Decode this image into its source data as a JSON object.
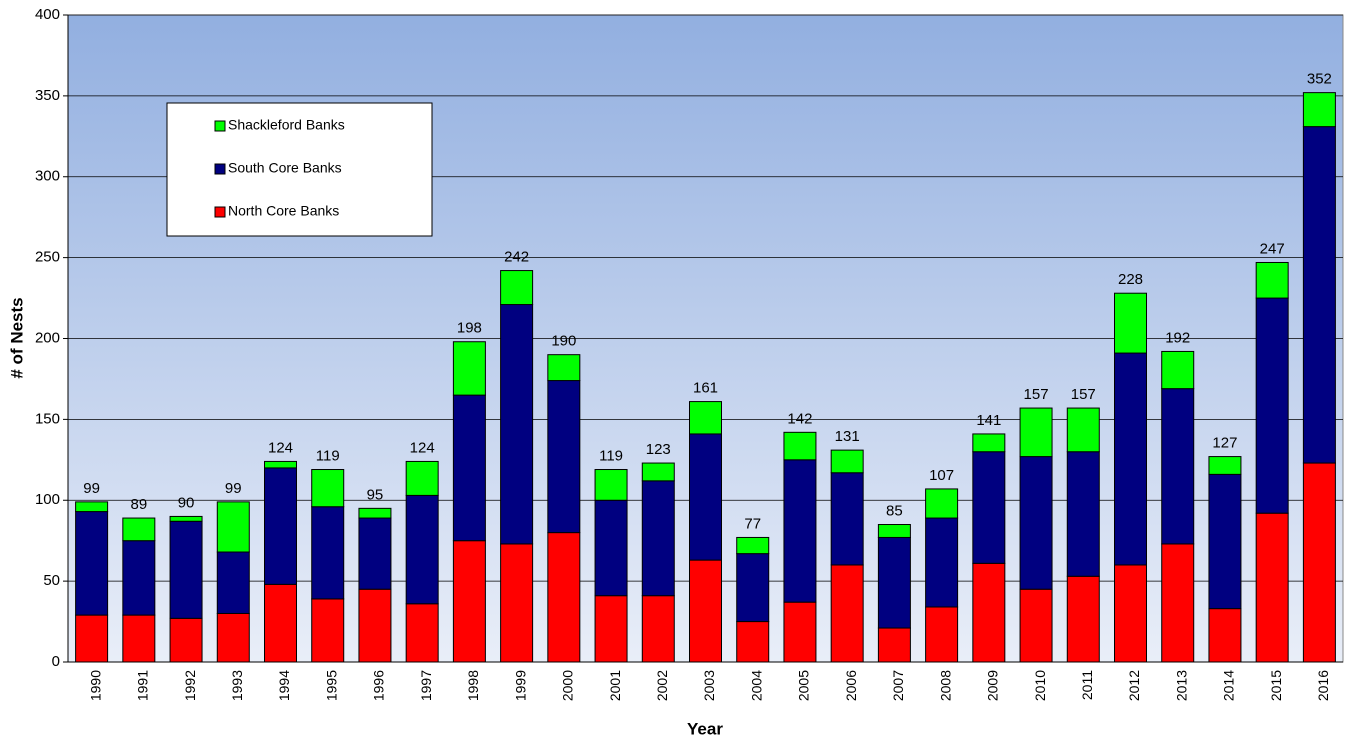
{
  "chart_data": {
    "type": "stacked_bar",
    "x_label": "Year",
    "y_label": "# of Nests",
    "categories": [
      "1990",
      "1991",
      "1992",
      "1993",
      "1994",
      "1995",
      "1996",
      "1997",
      "1998",
      "1999",
      "2000",
      "2001",
      "2002",
      "2003",
      "2004",
      "2005",
      "2006",
      "2007",
      "2008",
      "2009",
      "2010",
      "2011",
      "2012",
      "2013",
      "2014",
      "2015",
      "2016"
    ],
    "series": [
      {
        "name": "North Core Banks",
        "color": "#ff0000",
        "values": [
          29,
          29,
          27,
          30,
          48,
          39,
          45,
          36,
          75,
          73,
          80,
          41,
          41,
          63,
          25,
          37,
          60,
          21,
          34,
          61,
          45,
          53,
          60,
          73,
          33,
          92,
          123
        ]
      },
      {
        "name": "South Core Banks",
        "color": "#000080",
        "values": [
          64,
          46,
          60,
          38,
          72,
          57,
          44,
          67,
          90,
          148,
          94,
          59,
          71,
          78,
          42,
          88,
          57,
          56,
          55,
          69,
          82,
          77,
          131,
          96,
          83,
          133,
          208
        ]
      },
      {
        "name": "Shackleford Banks",
        "color": "#00ff00",
        "values": [
          6,
          14,
          3,
          31,
          4,
          23,
          6,
          21,
          33,
          21,
          16,
          19,
          11,
          20,
          10,
          17,
          14,
          8,
          18,
          11,
          30,
          27,
          37,
          23,
          11,
          22,
          21
        ]
      }
    ],
    "totals": [
      99,
      89,
      90,
      99,
      124,
      119,
      95,
      124,
      198,
      242,
      190,
      119,
      123,
      161,
      77,
      142,
      131,
      85,
      107,
      141,
      157,
      157,
      228,
      192,
      127,
      247,
      352
    ],
    "ylim": [
      0,
      400
    ],
    "yticks": [
      0,
      50,
      100,
      150,
      200,
      250,
      300,
      350,
      400
    ],
    "grid": true,
    "legend": "upper left"
  }
}
